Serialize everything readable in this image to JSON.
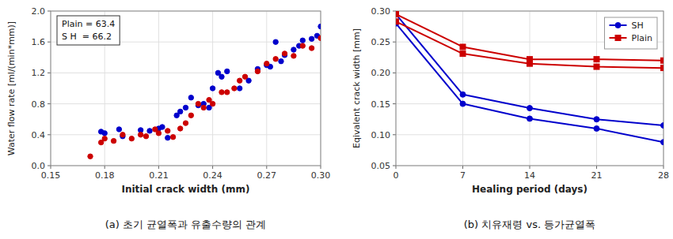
{
  "chart_data": [
    {
      "type": "scatter",
      "title": "(a) 초기 균열폭과 유출수량의 관계",
      "x_label": "Initial crack width (mm)",
      "y_label": "Water flow rate [ml/(min*mm)]",
      "annotation": "Plain = 63.4\nS H  = 66.2",
      "xlim": [
        0.15,
        0.3
      ],
      "ylim": [
        0.0,
        2.0
      ],
      "xticks": [
        0.15,
        0.18,
        0.21,
        0.24,
        0.27,
        {
          "value": 0.3,
          "label": "0.30"
        }
      ],
      "yticks": [
        {
          "value": 0.0,
          "label": "0.0"
        },
        0.4,
        0.8,
        1.2,
        1.6,
        {
          "value": 2.0,
          "label": "2.0"
        }
      ],
      "grid": true,
      "series": [
        {
          "color": "#0000CC",
          "marker": "circle",
          "x": [
            0.178,
            0.18,
            0.188,
            0.19,
            0.2,
            0.205,
            0.21,
            0.212,
            0.215,
            0.22,
            0.222,
            0.225,
            0.228,
            0.232,
            0.235,
            0.238,
            0.24,
            0.243,
            0.245,
            0.248,
            0.255,
            0.26,
            0.265,
            0.27,
            0.272,
            0.275,
            0.278,
            0.28,
            0.285,
            0.288,
            0.29,
            0.295,
            0.298,
            0.3
          ],
          "values": [
            0.44,
            0.42,
            0.47,
            0.38,
            0.46,
            0.45,
            0.48,
            0.5,
            0.36,
            0.65,
            0.7,
            0.75,
            0.88,
            0.78,
            0.8,
            0.75,
            1.0,
            1.2,
            1.15,
            1.22,
            1.0,
            1.1,
            1.25,
            1.3,
            1.28,
            1.6,
            1.35,
            1.43,
            1.5,
            1.55,
            1.62,
            1.64,
            1.68,
            1.8
          ]
        },
        {
          "color": "#CC0000",
          "marker": "circle",
          "x": [
            0.172,
            0.178,
            0.18,
            0.185,
            0.19,
            0.195,
            0.2,
            0.203,
            0.208,
            0.21,
            0.215,
            0.218,
            0.222,
            0.225,
            0.228,
            0.232,
            0.235,
            0.238,
            0.24,
            0.245,
            0.248,
            0.252,
            0.255,
            0.258,
            0.265,
            0.27,
            0.275,
            0.28,
            0.285,
            0.29,
            0.295,
            0.3
          ],
          "values": [
            0.12,
            0.3,
            0.35,
            0.32,
            0.4,
            0.35,
            0.4,
            0.38,
            0.47,
            0.42,
            0.45,
            0.37,
            0.48,
            0.55,
            0.65,
            0.8,
            0.75,
            0.85,
            0.8,
            0.95,
            0.95,
            1.0,
            1.1,
            1.15,
            1.22,
            1.32,
            1.38,
            1.45,
            1.42,
            1.55,
            1.52,
            1.65
          ]
        }
      ]
    },
    {
      "type": "line",
      "title": "(b) 치유재령 vs. 등가균열폭",
      "x_label": "Healing period (days)",
      "y_label": "Eqivalent crack width [mm]",
      "x": [
        0,
        7,
        14,
        21,
        28
      ],
      "xlim": [
        0,
        28
      ],
      "ylim": [
        0.05,
        0.3
      ],
      "xticks": [
        0,
        7,
        14,
        21,
        28
      ],
      "yticks": [
        0.05,
        {
          "value": 0.1,
          "label": "0.10"
        },
        0.15,
        {
          "value": 0.2,
          "label": "0.20"
        },
        0.25,
        {
          "value": 0.3,
          "label": "0.30"
        }
      ],
      "grid": true,
      "legend": "upper-right",
      "series": [
        {
          "name": "SH",
          "color": "#0000CC",
          "marker": "circle",
          "values": [
            0.295,
            0.165,
            0.143,
            0.125,
            0.115
          ]
        },
        {
          "color": "#0000CC",
          "marker": "circle",
          "values": [
            0.28,
            0.15,
            0.126,
            0.11,
            0.088
          ]
        },
        {
          "name": "Plain",
          "color": "#CC0000",
          "marker": "square",
          "values": [
            0.295,
            0.242,
            0.222,
            0.222,
            0.22
          ]
        },
        {
          "color": "#CC0000",
          "marker": "square",
          "values": [
            0.283,
            0.231,
            0.215,
            0.21,
            0.208
          ]
        }
      ]
    }
  ]
}
